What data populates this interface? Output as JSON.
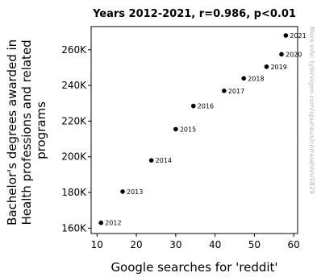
{
  "chart_data": {
    "type": "scatter",
    "title": "Years 2012-2021, r=0.986, p<0.01",
    "xlabel": "Google searches for 'reddit'",
    "ylabel": "Bachelor's degrees awarded in Health professions and related programs",
    "ylabel_lines": [
      "Bachelor's degrees awarded in",
      "Health professions and related",
      "programs"
    ],
    "xlim": [
      8.5,
      61
    ],
    "ylim": [
      157000,
      273000
    ],
    "x_ticks": [
      10,
      20,
      30,
      40,
      50,
      60
    ],
    "x_tick_labels": [
      "10",
      "20",
      "30",
      "40",
      "50",
      "60"
    ],
    "y_ticks": [
      160000,
      180000,
      200000,
      220000,
      240000,
      260000
    ],
    "y_tick_labels": [
      "160K",
      "180K",
      "200K",
      "220K",
      "240K",
      "260K"
    ],
    "grid": false,
    "points": [
      {
        "label": "2012",
        "x": 11.0,
        "y": 163000
      },
      {
        "label": "2013",
        "x": 16.5,
        "y": 180500
      },
      {
        "label": "2014",
        "x": 23.8,
        "y": 198000
      },
      {
        "label": "2015",
        "x": 30.0,
        "y": 215500
      },
      {
        "label": "2016",
        "x": 34.5,
        "y": 228500
      },
      {
        "label": "2017",
        "x": 42.3,
        "y": 237000
      },
      {
        "label": "2018",
        "x": 47.3,
        "y": 244000
      },
      {
        "label": "2019",
        "x": 53.1,
        "y": 250500
      },
      {
        "label": "2020",
        "x": 56.9,
        "y": 257500
      },
      {
        "label": "2021",
        "x": 58.0,
        "y": 268000
      }
    ],
    "annotation": "More info: tylervigen.com/spurious/correlation/1829",
    "colors": {
      "marker": "#000000",
      "axis": "#000000",
      "annotation": "#b4b4b4"
    }
  }
}
